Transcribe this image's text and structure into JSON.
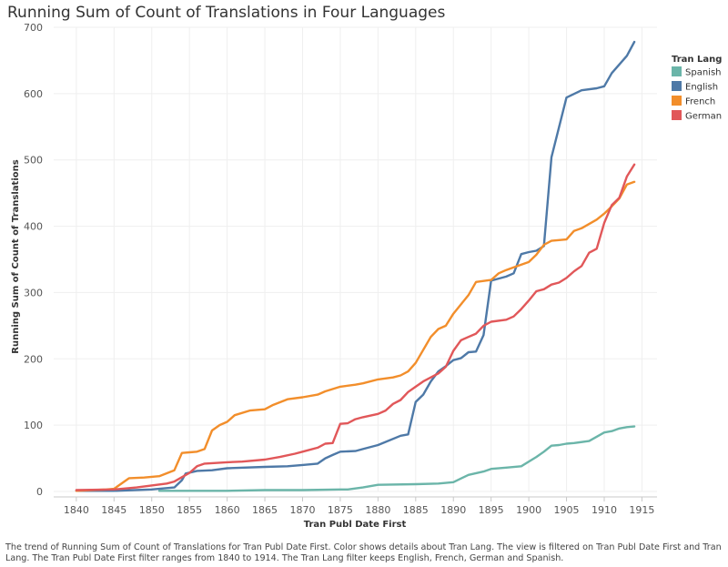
{
  "chart_data": {
    "type": "line",
    "title": "Running Sum of Count of Translations in Four Languages",
    "xlabel": "Tran Publ Date First",
    "ylabel": "Running Sum of Count of Translations",
    "xlim": [
      1837,
      1917
    ],
    "ylim": [
      0,
      700
    ],
    "x_ticks": [
      1840,
      1845,
      1850,
      1855,
      1860,
      1865,
      1870,
      1875,
      1880,
      1885,
      1890,
      1895,
      1900,
      1905,
      1910,
      1915
    ],
    "y_ticks": [
      0,
      100,
      200,
      300,
      400,
      500,
      600,
      700
    ],
    "grid": true,
    "legend": {
      "title": "Tran Lang",
      "position": "top-right"
    },
    "series": [
      {
        "name": "Spanish",
        "color": "#6bb5a9",
        "points": [
          [
            1851,
            1
          ],
          [
            1855,
            1
          ],
          [
            1860,
            1
          ],
          [
            1865,
            2
          ],
          [
            1870,
            2
          ],
          [
            1875,
            3
          ],
          [
            1876,
            3
          ],
          [
            1878,
            6
          ],
          [
            1880,
            10
          ],
          [
            1885,
            11
          ],
          [
            1888,
            12
          ],
          [
            1890,
            14
          ],
          [
            1892,
            25
          ],
          [
            1894,
            30
          ],
          [
            1895,
            34
          ],
          [
            1897,
            36
          ],
          [
            1899,
            38
          ],
          [
            1901,
            52
          ],
          [
            1902,
            60
          ],
          [
            1903,
            69
          ],
          [
            1904,
            70
          ],
          [
            1905,
            72
          ],
          [
            1906,
            73
          ],
          [
            1908,
            76
          ],
          [
            1910,
            89
          ],
          [
            1911,
            91
          ],
          [
            1912,
            95
          ],
          [
            1913,
            97
          ],
          [
            1914,
            98
          ]
        ]
      },
      {
        "name": "English",
        "color": "#4e79a7",
        "points": [
          [
            1840,
            1
          ],
          [
            1845,
            1
          ],
          [
            1850,
            3
          ],
          [
            1853,
            6
          ],
          [
            1854,
            17
          ],
          [
            1854.5,
            27
          ],
          [
            1856,
            31
          ],
          [
            1858,
            32
          ],
          [
            1860,
            35
          ],
          [
            1865,
            37
          ],
          [
            1868,
            38
          ],
          [
            1870,
            40
          ],
          [
            1872,
            42
          ],
          [
            1873,
            50
          ],
          [
            1874,
            55
          ],
          [
            1875,
            60
          ],
          [
            1877,
            61
          ],
          [
            1878,
            64
          ],
          [
            1880,
            70
          ],
          [
            1883,
            84
          ],
          [
            1884,
            86
          ],
          [
            1885,
            135
          ],
          [
            1886,
            146
          ],
          [
            1887,
            166
          ],
          [
            1888,
            181
          ],
          [
            1889,
            189
          ],
          [
            1890,
            198
          ],
          [
            1891,
            201
          ],
          [
            1892,
            210
          ],
          [
            1893,
            211
          ],
          [
            1894,
            236
          ],
          [
            1895,
            318
          ],
          [
            1896,
            321
          ],
          [
            1897,
            324
          ],
          [
            1898,
            329
          ],
          [
            1899,
            358
          ],
          [
            1900,
            361
          ],
          [
            1901,
            363
          ],
          [
            1902,
            370
          ],
          [
            1903,
            504
          ],
          [
            1905,
            594
          ],
          [
            1907,
            605
          ],
          [
            1909,
            608
          ],
          [
            1910,
            611
          ],
          [
            1911,
            631
          ],
          [
            1913,
            657
          ],
          [
            1914,
            678
          ]
        ]
      },
      {
        "name": "French",
        "color": "#f28e2b",
        "points": [
          [
            1840,
            1
          ],
          [
            1842,
            2
          ],
          [
            1844,
            3
          ],
          [
            1845,
            4
          ],
          [
            1847,
            20
          ],
          [
            1849,
            21
          ],
          [
            1851,
            23
          ],
          [
            1853,
            32
          ],
          [
            1854,
            58
          ],
          [
            1855,
            59
          ],
          [
            1856,
            60
          ],
          [
            1857,
            64
          ],
          [
            1858,
            92
          ],
          [
            1859,
            100
          ],
          [
            1860,
            105
          ],
          [
            1861,
            115
          ],
          [
            1863,
            122
          ],
          [
            1865,
            124
          ],
          [
            1866,
            130
          ],
          [
            1868,
            139
          ],
          [
            1870,
            142
          ],
          [
            1872,
            146
          ],
          [
            1873,
            151
          ],
          [
            1875,
            158
          ],
          [
            1877,
            161
          ],
          [
            1878,
            163
          ],
          [
            1880,
            169
          ],
          [
            1882,
            172
          ],
          [
            1883,
            175
          ],
          [
            1884,
            181
          ],
          [
            1885,
            194
          ],
          [
            1887,
            233
          ],
          [
            1888,
            245
          ],
          [
            1889,
            250
          ],
          [
            1890,
            268
          ],
          [
            1891,
            282
          ],
          [
            1892,
            296
          ],
          [
            1893,
            316
          ],
          [
            1895,
            319
          ],
          [
            1896,
            329
          ],
          [
            1897,
            334
          ],
          [
            1898,
            338
          ],
          [
            1900,
            346
          ],
          [
            1901,
            357
          ],
          [
            1902,
            372
          ],
          [
            1903,
            378
          ],
          [
            1905,
            380
          ],
          [
            1906,
            393
          ],
          [
            1907,
            397
          ],
          [
            1909,
            410
          ],
          [
            1910,
            419
          ],
          [
            1911,
            430
          ],
          [
            1912,
            442
          ],
          [
            1913,
            463
          ],
          [
            1914,
            467
          ]
        ]
      },
      {
        "name": "German",
        "color": "#e15759",
        "points": [
          [
            1840,
            2
          ],
          [
            1845,
            3
          ],
          [
            1848,
            6
          ],
          [
            1850,
            9
          ],
          [
            1852,
            12
          ],
          [
            1853,
            15
          ],
          [
            1855,
            28
          ],
          [
            1856,
            38
          ],
          [
            1857,
            42
          ],
          [
            1860,
            44
          ],
          [
            1862,
            45
          ],
          [
            1865,
            48
          ],
          [
            1867,
            52
          ],
          [
            1869,
            57
          ],
          [
            1870,
            60
          ],
          [
            1872,
            66
          ],
          [
            1873,
            72
          ],
          [
            1874,
            73
          ],
          [
            1875,
            102
          ],
          [
            1876,
            103
          ],
          [
            1877,
            109
          ],
          [
            1878,
            112
          ],
          [
            1880,
            117
          ],
          [
            1881,
            122
          ],
          [
            1882,
            132
          ],
          [
            1883,
            138
          ],
          [
            1884,
            150
          ],
          [
            1885,
            158
          ],
          [
            1886,
            166
          ],
          [
            1887,
            172
          ],
          [
            1888,
            178
          ],
          [
            1889,
            188
          ],
          [
            1890,
            212
          ],
          [
            1891,
            228
          ],
          [
            1892,
            233
          ],
          [
            1893,
            238
          ],
          [
            1894,
            250
          ],
          [
            1895,
            256
          ],
          [
            1897,
            259
          ],
          [
            1898,
            264
          ],
          [
            1899,
            275
          ],
          [
            1900,
            288
          ],
          [
            1901,
            302
          ],
          [
            1902,
            305
          ],
          [
            1903,
            312
          ],
          [
            1904,
            315
          ],
          [
            1905,
            322
          ],
          [
            1906,
            332
          ],
          [
            1907,
            340
          ],
          [
            1908,
            360
          ],
          [
            1909,
            366
          ],
          [
            1910,
            405
          ],
          [
            1911,
            432
          ],
          [
            1912,
            443
          ],
          [
            1913,
            475
          ],
          [
            1914,
            493
          ]
        ]
      }
    ]
  },
  "caption": "The trend of Running Sum of Count of Translations for Tran Publ Date First.  Color shows details about Tran Lang. The view is filtered on Tran Publ Date First and Tran Lang. The Tran Publ Date First filter ranges from 1840 to 1914. The Tran Lang filter keeps English, French, German and Spanish."
}
